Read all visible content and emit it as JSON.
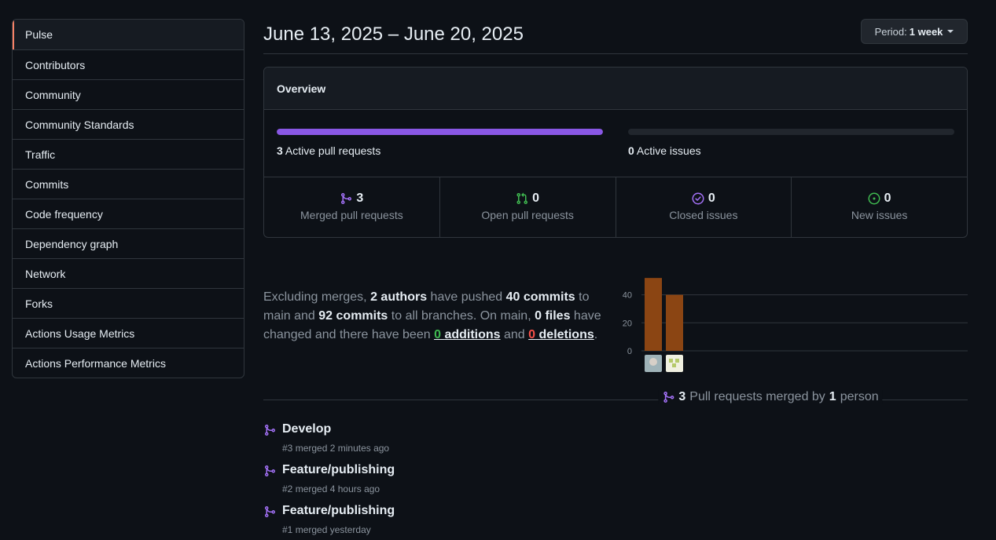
{
  "sidebar": {
    "items": [
      {
        "label": "Pulse",
        "active": true
      },
      {
        "label": "Contributors"
      },
      {
        "label": "Community"
      },
      {
        "label": "Community Standards"
      },
      {
        "label": "Traffic"
      },
      {
        "label": "Commits"
      },
      {
        "label": "Code frequency"
      },
      {
        "label": "Dependency graph"
      },
      {
        "label": "Network"
      },
      {
        "label": "Forks"
      },
      {
        "label": "Actions Usage Metrics"
      },
      {
        "label": "Actions Performance Metrics"
      }
    ]
  },
  "header": {
    "title": "June 13, 2025 – June 20, 2025",
    "period_prefix": "Period:",
    "period_value": "1 week"
  },
  "overview": {
    "title": "Overview",
    "active_prs": {
      "count": "3",
      "label": "Active pull requests",
      "fraction": 1.0
    },
    "active_issues": {
      "count": "0",
      "label": "Active issues",
      "fraction": 0.0
    },
    "stats": [
      {
        "icon": "merge-icon",
        "value": "3",
        "label": "Merged pull requests",
        "color": "#a371f7"
      },
      {
        "icon": "pull-request-icon",
        "value": "0",
        "label": "Open pull requests",
        "color": "#3fb950"
      },
      {
        "icon": "issue-closed-icon",
        "value": "0",
        "label": "Closed issues",
        "color": "#a371f7"
      },
      {
        "icon": "issue-opened-icon",
        "value": "0",
        "label": "New issues",
        "color": "#3fb950"
      }
    ]
  },
  "summary": {
    "t1": "Excluding merges,",
    "authors": "2 authors",
    "t2": "have pushed",
    "commits_main": "40 commits",
    "t3": "to main and",
    "commits_all": "92 commits",
    "t4": "to all branches. On main,",
    "files": "0 files",
    "t5": "have changed and there have been",
    "additions_n": "0",
    "additions_w": "additions",
    "t6": "and",
    "deletions_n": "0",
    "deletions_w": "deletions",
    "t7": "."
  },
  "chart_data": {
    "type": "bar",
    "categories": [
      "author-1",
      "author-2"
    ],
    "values": [
      52,
      40
    ],
    "yticks": [
      0,
      20,
      40
    ],
    "ylim": [
      0,
      56
    ],
    "bar_color": "#8b4513"
  },
  "pr_section": {
    "count": "3",
    "t1": "Pull requests merged by",
    "people": "1",
    "t2": "person"
  },
  "pull_requests": [
    {
      "title": "Develop",
      "number": "#3",
      "merged": "merged 2 minutes ago"
    },
    {
      "title": "Feature/publishing",
      "number": "#2",
      "merged": "merged 4 hours ago"
    },
    {
      "title": "Feature/publishing",
      "number": "#1",
      "merged": "merged yesterday"
    }
  ],
  "colors": {
    "accent": "#f78166",
    "merged": "#a371f7",
    "open": "#3fb950",
    "bar": "#8957e5"
  }
}
